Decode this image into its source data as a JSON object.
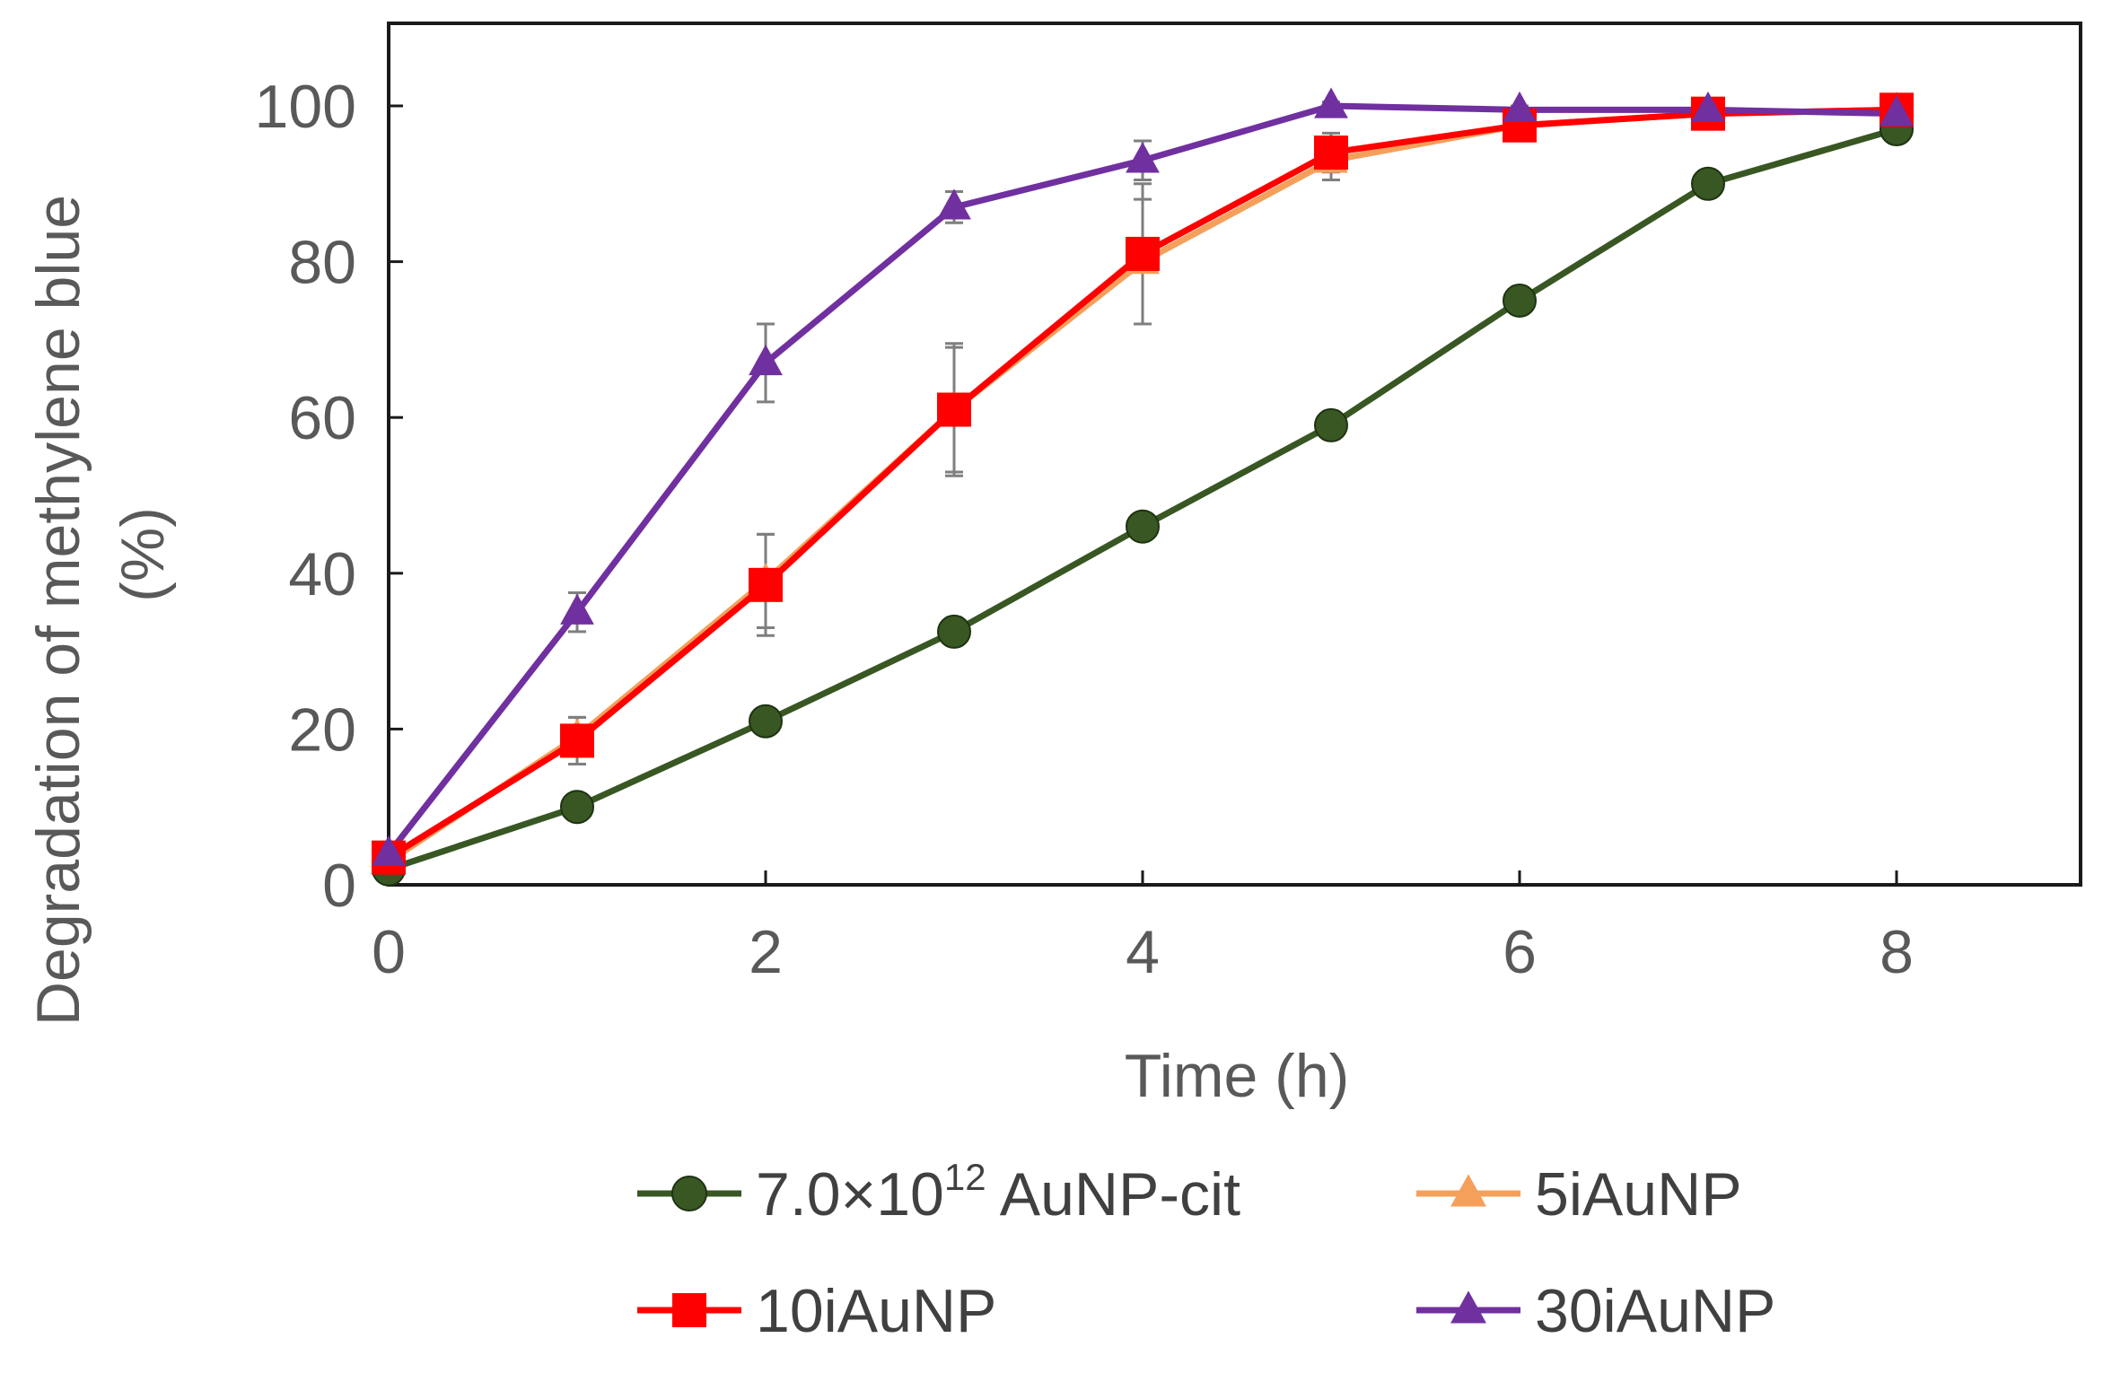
{
  "chart_data": {
    "type": "line",
    "title": "",
    "xlabel": "Time (h)",
    "ylabel": "Degradation of methylene blue",
    "ylabel_unit": "(%)",
    "xlim": [
      0,
      9
    ],
    "ylim": [
      0,
      110
    ],
    "x_ticks": [
      0,
      2,
      4,
      6,
      8
    ],
    "y_ticks": [
      0,
      20,
      40,
      60,
      80,
      100
    ],
    "grid": false,
    "legend_position": "bottom",
    "x": [
      0,
      1,
      2,
      3,
      4,
      5,
      6,
      7,
      8
    ],
    "series": [
      {
        "name": "7.0×10^12 AuNP-cit",
        "legend_main": "7.0×10",
        "legend_sup": "12",
        "legend_rest": " AuNP-cit",
        "color": "#385723",
        "marker": "circle",
        "values": [
          2,
          10,
          21,
          32.5,
          46,
          59,
          75,
          90,
          97
        ],
        "errors": [
          0,
          0,
          0,
          0,
          0,
          0,
          0,
          0,
          0
        ]
      },
      {
        "name": "5iAuNP",
        "legend_main": "5iAuNP",
        "color": "#F4A05A",
        "marker": "triangle",
        "values": [
          3,
          19,
          39,
          61,
          80,
          93,
          97.5,
          99,
          99.5
        ],
        "errors": [
          0,
          2.5,
          6,
          8,
          8,
          2.5,
          1,
          0.5,
          0.5
        ]
      },
      {
        "name": "10iAuNP",
        "legend_main": "10iAuNP",
        "color": "#FF0000",
        "marker": "square",
        "values": [
          3.5,
          18.5,
          38.5,
          61,
          81,
          94,
          97.5,
          99,
          99.5
        ],
        "errors": [
          0,
          3,
          6.5,
          8.5,
          9,
          2.5,
          1,
          0.5,
          0.5
        ]
      },
      {
        "name": "30iAuNP",
        "legend_main": "30iAuNP",
        "color": "#7030A0",
        "marker": "triangle",
        "values": [
          4,
          35,
          67,
          87,
          93,
          100,
          99.5,
          99.5,
          99
        ],
        "errors": [
          0,
          2.5,
          5,
          2,
          2.5,
          0.5,
          0.5,
          0.5,
          0.5
        ]
      }
    ]
  }
}
